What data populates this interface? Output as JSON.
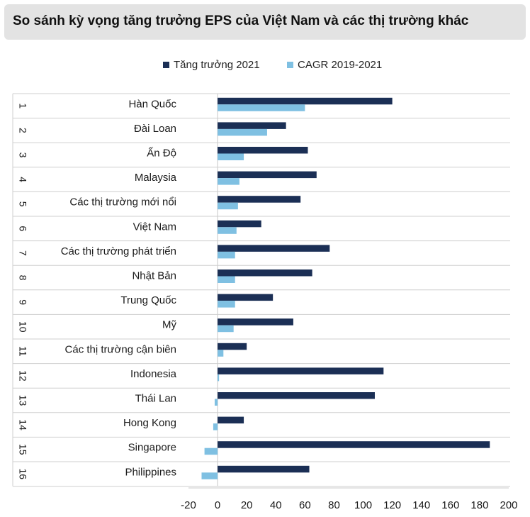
{
  "chart_data": {
    "type": "bar",
    "orientation": "horizontal",
    "title": "So sánh kỳ vọng tăng trưởng EPS của Việt Nam và các thị trường khác",
    "ranks": [
      "1",
      "2",
      "3",
      "4",
      "5",
      "6",
      "7",
      "8",
      "9",
      "10",
      "11",
      "12",
      "13",
      "14",
      "15",
      "16"
    ],
    "categories": [
      "Hàn Quốc",
      "Đài Loan",
      "Ấn Độ",
      "Malaysia",
      "Các thị trường mới nổi",
      "Việt Nam",
      "Các thị trường phát triển",
      "Nhật Bản",
      "Trung Quốc",
      "Mỹ",
      "Các thị trường cận biên",
      "Indonesia",
      "Thái Lan",
      "Hong Kong",
      "Singapore",
      "Philippines"
    ],
    "series": [
      {
        "name": "Tăng trưởng 2021",
        "color": "#1b2f55",
        "values": [
          120,
          47,
          62,
          68,
          57,
          30,
          77,
          65,
          38,
          52,
          20,
          114,
          108,
          18,
          187,
          63
        ]
      },
      {
        "name": "CAGR 2019-2021",
        "color": "#7fc0e2",
        "values": [
          60,
          34,
          18,
          15,
          14,
          13,
          12,
          12,
          12,
          11,
          4,
          1,
          -2,
          -3,
          -9,
          -11
        ]
      }
    ],
    "xlim": [
      -20,
      200
    ],
    "xticks": [
      "-20",
      "0",
      "20",
      "40",
      "60",
      "80",
      "100",
      "120",
      "140",
      "160",
      "180",
      "200"
    ],
    "xlabel": "",
    "ylabel": "",
    "legend_position": "top",
    "grid": "horizontal row separators"
  }
}
